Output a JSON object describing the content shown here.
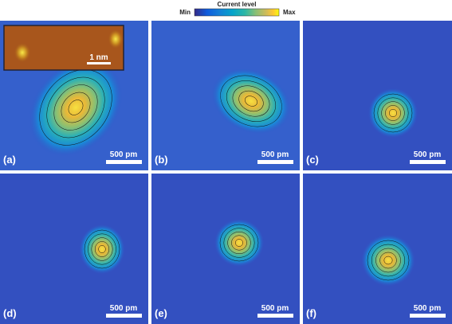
{
  "colorbar": {
    "title": "Current level",
    "min": "Min",
    "max": "Max"
  },
  "inset": {
    "scale_bar": "1 nm"
  },
  "panels": [
    {
      "label": "(a)",
      "scale_bar": "500 pm"
    },
    {
      "label": "(b)",
      "scale_bar": "500 pm"
    },
    {
      "label": "(c)",
      "scale_bar": "500 pm"
    },
    {
      "label": "(d)",
      "scale_bar": "500 pm"
    },
    {
      "label": "(e)",
      "scale_bar": "500 pm"
    },
    {
      "label": "(f)",
      "scale_bar": "500 pm"
    }
  ]
}
